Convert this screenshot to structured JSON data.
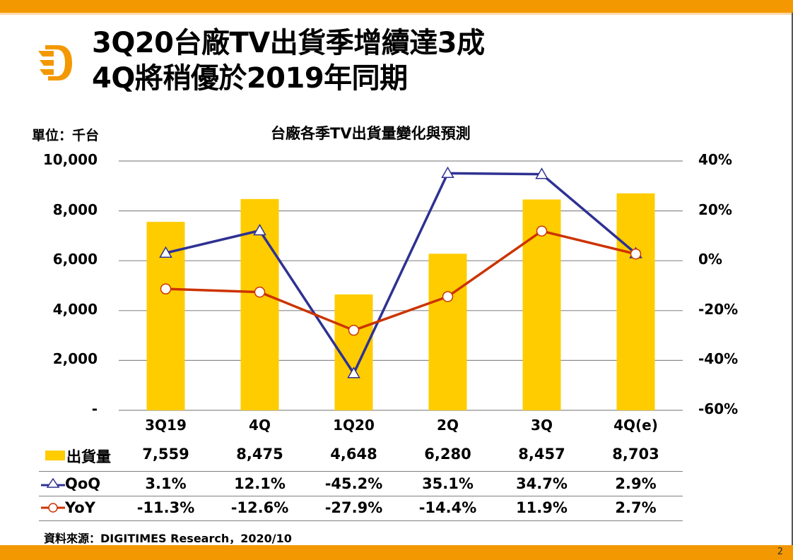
{
  "slide": {
    "title_line1": "3Q20台廠TV出貨季增續達3成",
    "title_line2": "4Q將稍優於2019年同期",
    "page_number": "2",
    "source": "資料來源：DIGITIMES Research，2020/10",
    "brand_color": "#F39800",
    "logo_icon": "digitimes-d-logo-icon"
  },
  "chart_data": {
    "type": "bar",
    "title": "台廠各季TV出貨量變化與預測",
    "unit_label": "單位：千台",
    "categories": [
      "3Q19",
      "4Q",
      "1Q20",
      "2Q",
      "3Q",
      "4Q(e)"
    ],
    "y_ticks": [
      "10,000",
      "8,000",
      "6,000",
      "4,000",
      "2,000",
      "-"
    ],
    "y_ticks_values": [
      10000,
      8000,
      6000,
      4000,
      2000,
      0
    ],
    "ylim": [
      0,
      10000
    ],
    "y2_ticks": [
      "40%",
      "20%",
      "0%",
      "-20%",
      "-40%",
      "-60%"
    ],
    "y2_ticks_values": [
      40,
      20,
      0,
      -20,
      -40,
      -60
    ],
    "y2lim": [
      -60,
      40
    ],
    "grid": true,
    "series": [
      {
        "name": "出貨量",
        "type": "bar",
        "axis": "left",
        "color": "#FFCC00",
        "values": [
          7559,
          8475,
          4648,
          6280,
          8457,
          8703
        ],
        "labels": [
          "7,559",
          "8,475",
          "4,648",
          "6,280",
          "8,457",
          "8,703"
        ]
      },
      {
        "name": "QoQ",
        "type": "line",
        "axis": "right",
        "color": "#2E3192",
        "marker": "triangle",
        "values": [
          3.1,
          12.1,
          -45.2,
          35.1,
          34.7,
          2.9
        ],
        "labels": [
          "3.1%",
          "12.1%",
          "-45.2%",
          "35.1%",
          "34.7%",
          "2.9%"
        ]
      },
      {
        "name": "YoY",
        "type": "line",
        "axis": "right",
        "color": "#CC3300",
        "marker": "circle",
        "values": [
          -11.3,
          -12.6,
          -27.9,
          -14.4,
          11.9,
          2.7
        ],
        "labels": [
          "-11.3%",
          "-12.6%",
          "-27.9%",
          "-14.4%",
          "11.9%",
          "2.7%"
        ]
      }
    ],
    "legend_placement": "data-table-below"
  }
}
